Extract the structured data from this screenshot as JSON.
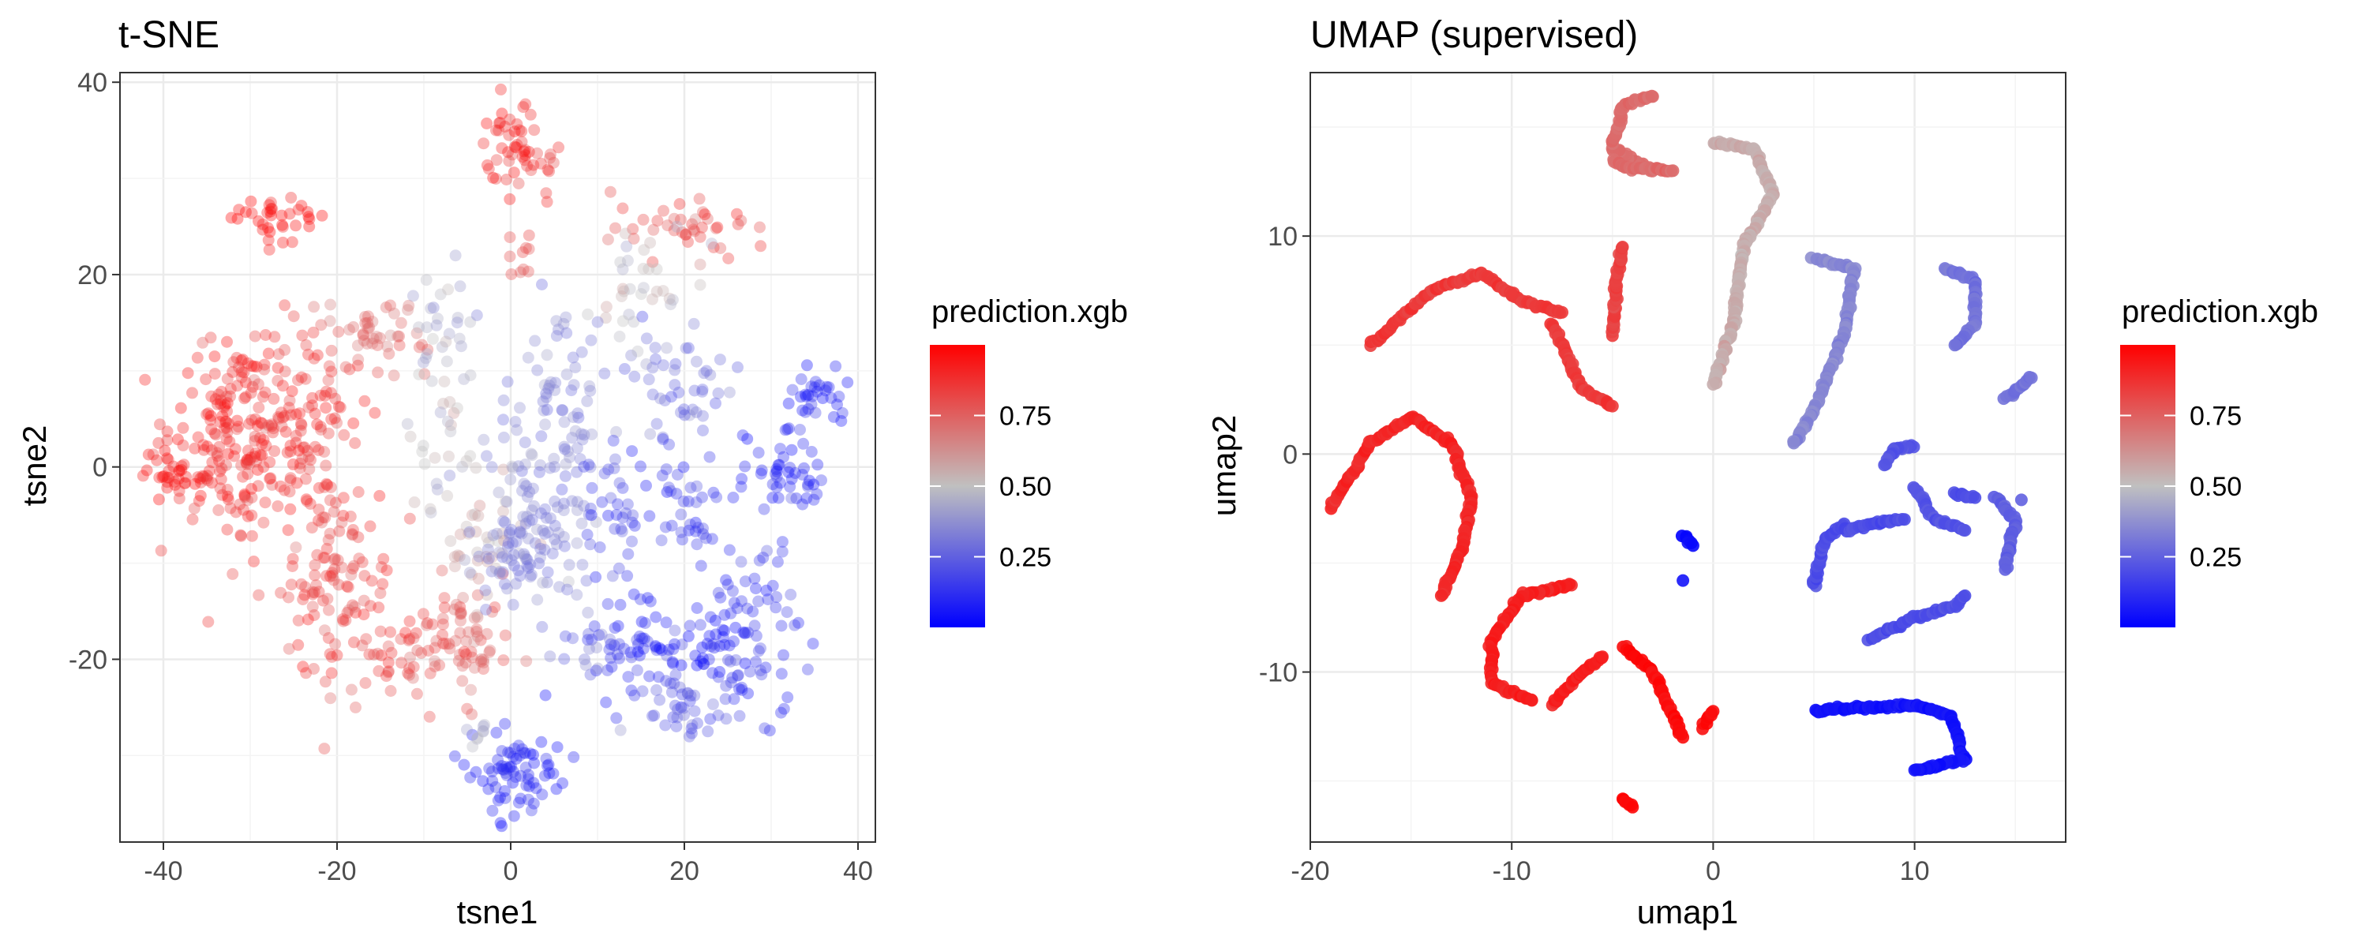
{
  "chart_data": [
    {
      "type": "scatter",
      "title": "t-SNE",
      "xlabel": "tsne1",
      "ylabel": "tsne2",
      "xlim": [
        -45,
        42
      ],
      "ylim": [
        -39,
        41
      ],
      "xticks": [
        -40,
        -20,
        0,
        20,
        40
      ],
      "yticks": [
        -20,
        0,
        20,
        40
      ],
      "grid": true,
      "point_opacity": 0.35,
      "color_by": "prediction.xgb",
      "legend": {
        "title": "prediction.xgb",
        "ticks": [
          0.25,
          0.5,
          0.75
        ],
        "tick_labels": [
          "0.25",
          "0.50",
          "0.75"
        ],
        "range": [
          0,
          1
        ],
        "colors": [
          "#0000ff",
          "#c0c0c0",
          "#ff0000"
        ],
        "placement": "right"
      },
      "clusters": [
        {
          "x": -27,
          "y": 26,
          "sx": 2.6,
          "sy": 1.3,
          "n": 35,
          "value": 0.98
        },
        {
          "x": 0,
          "y": 33,
          "sx": 1.8,
          "sy": 2.5,
          "n": 45,
          "value": 0.9
        },
        {
          "x": 4,
          "y": 31,
          "sx": 1.0,
          "sy": 1.5,
          "n": 10,
          "value": 0.85
        },
        {
          "x": 1,
          "y": 22,
          "sx": 1.0,
          "sy": 1.6,
          "n": 10,
          "value": 0.8
        },
        {
          "x": 21,
          "y": 25,
          "sx": 4.5,
          "sy": 1.6,
          "n": 40,
          "value": 0.82
        },
        {
          "x": 16,
          "y": 18,
          "sx": 3.5,
          "sy": 3.0,
          "n": 35,
          "value": 0.5
        },
        {
          "x": 18,
          "y": 10,
          "sx": 5.0,
          "sy": 2.5,
          "n": 35,
          "value": 0.3
        },
        {
          "x": 20,
          "y": 6,
          "sx": 2.0,
          "sy": 2.5,
          "n": 18,
          "value": 0.25
        },
        {
          "x": -33,
          "y": 4,
          "sx": 3.2,
          "sy": 5.0,
          "n": 150,
          "value": 0.9
        },
        {
          "x": -39,
          "y": -1,
          "sx": 1.6,
          "sy": 2.0,
          "n": 35,
          "value": 0.92
        },
        {
          "x": -25,
          "y": 5,
          "sx": 4.0,
          "sy": 5.0,
          "n": 130,
          "value": 0.86
        },
        {
          "x": -16,
          "y": 14,
          "sx": 3.0,
          "sy": 2.0,
          "n": 45,
          "value": 0.72
        },
        {
          "x": -8,
          "y": 14,
          "sx": 2.0,
          "sy": 3.5,
          "n": 30,
          "value": 0.45
        },
        {
          "x": -8,
          "y": 3,
          "sx": 2.0,
          "sy": 3.5,
          "n": 25,
          "value": 0.5
        },
        {
          "x": -20,
          "y": -12,
          "sx": 3.2,
          "sy": 5.5,
          "n": 110,
          "value": 0.84
        },
        {
          "x": -13,
          "y": -20,
          "sx": 3.5,
          "sy": 2.5,
          "n": 45,
          "value": 0.82
        },
        {
          "x": -5,
          "y": -18,
          "sx": 2.5,
          "sy": 3.0,
          "n": 60,
          "value": 0.75
        },
        {
          "x": -3,
          "y": -9,
          "sx": 2.5,
          "sy": 3.0,
          "n": 35,
          "value": 0.55
        },
        {
          "x": 2,
          "y": -6,
          "sx": 3.0,
          "sy": 4.0,
          "n": 90,
          "value": 0.35
        },
        {
          "x": 5,
          "y": 5,
          "sx": 2.5,
          "sy": 5.0,
          "n": 70,
          "value": 0.32
        },
        {
          "x": 2,
          "y": -10,
          "sx": 3.0,
          "sy": 2.0,
          "n": 25,
          "value": 0.3
        },
        {
          "x": 12,
          "y": -4,
          "sx": 2.0,
          "sy": 3.0,
          "n": 35,
          "value": 0.18
        },
        {
          "x": 20,
          "y": -4,
          "sx": 2.5,
          "sy": 3.5,
          "n": 35,
          "value": 0.15
        },
        {
          "x": 32,
          "y": -1,
          "sx": 2.5,
          "sy": 2.0,
          "n": 45,
          "value": 0.1
        },
        {
          "x": 35,
          "y": 7,
          "sx": 1.8,
          "sy": 2.0,
          "n": 35,
          "value": 0.1
        },
        {
          "x": 14,
          "y": -18,
          "sx": 3.0,
          "sy": 3.0,
          "n": 55,
          "value": 0.12
        },
        {
          "x": 22,
          "y": -18,
          "sx": 3.0,
          "sy": 2.5,
          "n": 40,
          "value": 0.06
        },
        {
          "x": 28,
          "y": -18,
          "sx": 2.5,
          "sy": 5.0,
          "n": 70,
          "value": 0.14
        },
        {
          "x": 20,
          "y": -25,
          "sx": 3.5,
          "sy": 1.2,
          "n": 40,
          "value": 0.22
        },
        {
          "x": 1,
          "y": -32,
          "sx": 2.5,
          "sy": 2.5,
          "n": 75,
          "value": 0.08
        },
        {
          "x": -4,
          "y": -28,
          "sx": 1.2,
          "sy": 1.0,
          "n": 8,
          "value": 0.45
        },
        {
          "x": 8,
          "y": -19,
          "sx": 2.0,
          "sy": 2.0,
          "n": 15,
          "value": 0.3
        }
      ]
    },
    {
      "type": "scatter",
      "title": "UMAP (supervised)",
      "xlabel": "umap1",
      "ylabel": "umap2",
      "xlim": [
        -20.0,
        17.5
      ],
      "ylim": [
        -17.8,
        17.5
      ],
      "xticks": [
        -20,
        -10,
        0,
        10
      ],
      "yticks": [
        -10,
        0,
        10
      ],
      "grid": true,
      "point_opacity": 0.9,
      "color_by": "prediction.xgb",
      "legend": {
        "title": "prediction.xgb",
        "ticks": [
          0.25,
          0.5,
          0.75
        ],
        "tick_labels": [
          "0.25",
          "0.50",
          "0.75"
        ],
        "range": [
          0,
          1
        ],
        "colors": [
          "#0000ff",
          "#c0c0c0",
          "#ff0000"
        ],
        "placement": "right"
      },
      "curves": [
        {
          "path": [
            [
              -17,
              5
            ],
            [
              -14,
              7.5
            ],
            [
              -11.5,
              8.3
            ],
            [
              -9.5,
              7
            ],
            [
              -7.5,
              6.5
            ]
          ],
          "value": 0.85
        },
        {
          "path": [
            [
              -19,
              -2.5
            ],
            [
              -17,
              0.5
            ],
            [
              -15,
              1.7
            ],
            [
              -13,
              0.5
            ],
            [
              -12,
              -2
            ],
            [
              -12.5,
              -4.5
            ],
            [
              -13.5,
              -6.5
            ]
          ],
          "value": 0.9
        },
        {
          "path": [
            [
              -8,
              6
            ],
            [
              -6.5,
              3
            ],
            [
              -5,
              2.2
            ]
          ],
          "value": 0.85
        },
        {
          "path": [
            [
              -5,
              5.5
            ],
            [
              -4.8,
              8
            ],
            [
              -4.5,
              9.5
            ]
          ],
          "value": 0.83
        },
        {
          "path": [
            [
              -3,
              13
            ],
            [
              -5,
              14
            ],
            [
              -4.5,
              16
            ],
            [
              -3,
              16.4
            ]
          ],
          "value": 0.72
        },
        {
          "path": [
            [
              -5,
              13.5
            ],
            [
              -4.5,
              13.2
            ],
            [
              -2,
              13
            ]
          ],
          "value": 0.72
        },
        {
          "path": [
            [
              0,
              14.3
            ],
            [
              2,
              14
            ],
            [
              3,
              12
            ],
            [
              1.5,
              9.5
            ],
            [
              1,
              6
            ],
            [
              0,
              3.2
            ]
          ],
          "value": 0.55
        },
        {
          "path": [
            [
              5,
              9
            ],
            [
              7,
              8.5
            ],
            [
              6.5,
              5.5
            ],
            [
              5,
              2
            ],
            [
              4,
              0.5
            ]
          ],
          "value": 0.35
        },
        {
          "path": [
            [
              11.5,
              8.5
            ],
            [
              13,
              8
            ],
            [
              13,
              6
            ],
            [
              12,
              5
            ]
          ],
          "value": 0.3
        },
        {
          "path": [
            [
              14.5,
              2.5
            ],
            [
              15.8,
              3.5
            ]
          ],
          "value": 0.3
        },
        {
          "path": [
            [
              -7,
              -6
            ],
            [
              -9.5,
              -6.5
            ],
            [
              -11,
              -8.5
            ],
            [
              -11,
              -10.5
            ],
            [
              -9,
              -11.3
            ]
          ],
          "value": 0.92
        },
        {
          "path": [
            [
              -8,
              -11.5
            ],
            [
              -6.5,
              -10
            ],
            [
              -5.5,
              -9.3
            ]
          ],
          "value": 0.92
        },
        {
          "path": [
            [
              -4.5,
              -8.8
            ],
            [
              -3,
              -10
            ],
            [
              -2,
              -12
            ],
            [
              -1.5,
              -13
            ]
          ],
          "value": 0.97
        },
        {
          "path": [
            [
              -0.5,
              -12.5
            ],
            [
              0,
              -11.8
            ]
          ],
          "value": 0.97
        },
        {
          "path": [
            [
              -4.5,
              -15.8
            ],
            [
              -4,
              -16.2
            ]
          ],
          "value": 0.99
        },
        {
          "path": [
            [
              -1.5,
              -3.7
            ],
            [
              -1,
              -4.2
            ]
          ],
          "value": 0.02
        },
        {
          "path": [
            [
              5,
              -6
            ],
            [
              5.5,
              -4
            ],
            [
              6.5,
              -3.2
            ]
          ],
          "value": 0.2
        },
        {
          "path": [
            [
              6.5,
              -3.5
            ],
            [
              8,
              -3.2
            ],
            [
              9.5,
              -3
            ]
          ],
          "value": 0.2
        },
        {
          "path": [
            [
              10,
              0.4
            ],
            [
              9,
              0.2
            ],
            [
              8.5,
              -0.5
            ]
          ],
          "value": 0.22
        },
        {
          "path": [
            [
              10,
              -1.5
            ],
            [
              11,
              -3
            ],
            [
              12.5,
              -3.5
            ]
          ],
          "value": 0.22
        },
        {
          "path": [
            [
              12,
              -1.8
            ],
            [
              13,
              -2
            ]
          ],
          "value": 0.2
        },
        {
          "path": [
            [
              14,
              -2
            ],
            [
              15,
              -3
            ],
            [
              14.5,
              -5.3
            ]
          ],
          "value": 0.25
        },
        {
          "path": [
            [
              7.8,
              -8.5
            ],
            [
              10,
              -7.5
            ],
            [
              12,
              -7
            ],
            [
              12.5,
              -6.5
            ]
          ],
          "value": 0.2
        },
        {
          "path": [
            [
              5,
              -11.8
            ],
            [
              8,
              -11.6
            ],
            [
              10,
              -11.5
            ],
            [
              11.8,
              -12
            ],
            [
              12.5,
              -14
            ],
            [
              10,
              -14.5
            ]
          ],
          "value": 0.05
        }
      ],
      "points": [
        {
          "x": -1.5,
          "y": -5.8,
          "value": 0.05
        },
        {
          "x": 15.3,
          "y": -2.1,
          "value": 0.25
        },
        {
          "x": -10,
          "y": 7.3,
          "value": 0.85
        }
      ]
    }
  ]
}
